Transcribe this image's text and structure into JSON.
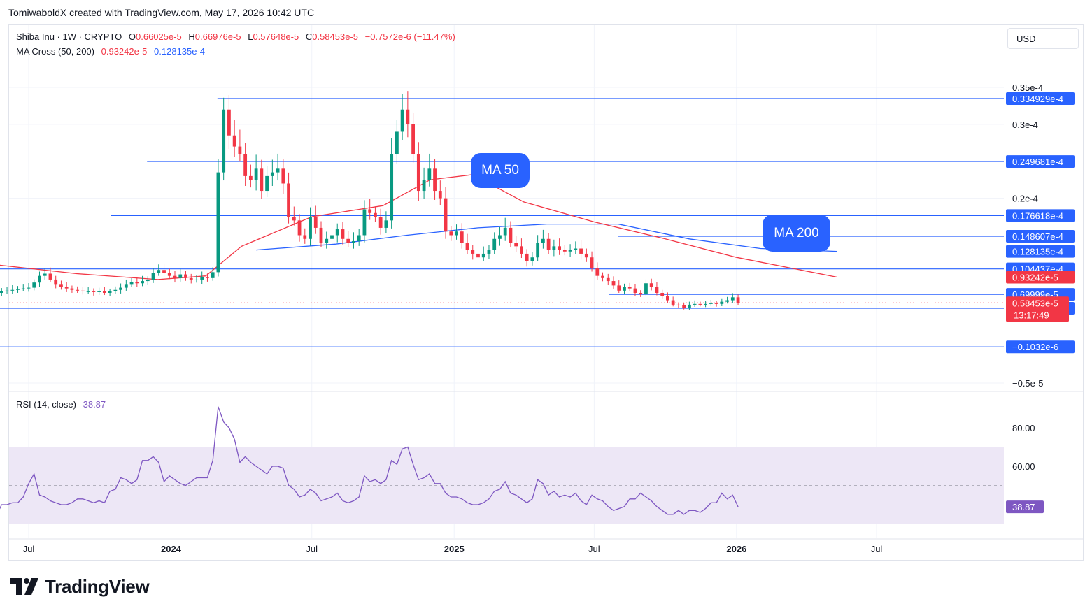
{
  "header": {
    "credit": "TomiwaboldX created with TradingView.com, May 17, 2026 10:42 UTC"
  },
  "legend": {
    "symbol": "Shiba Inu · 1W · CRYPTO",
    "o_label": "O",
    "o_value": "0.66025e-5",
    "h_label": "H",
    "h_value": "0.66976e-5",
    "l_label": "L",
    "l_value": "0.57648e-5",
    "c_label": "C",
    "c_value": "0.58453e-5",
    "change": "−0.7572e-6 (−11.47%)",
    "ma_label": "MA Cross (50, 200)",
    "ma50_value": "0.93242e-5",
    "ma200_value": "0.128135e-4",
    "rsi_label": "RSI (14, close)",
    "rsi_value": "38.87"
  },
  "currency_button": "USD",
  "bubbles": {
    "ma50": "MA 50",
    "ma200": "MA 200"
  },
  "brand": "TradingView",
  "colors": {
    "up": "#089981",
    "down": "#f23645",
    "ma50": "#f23645",
    "ma200": "#2962ff",
    "hline": "#2962ff",
    "rsi": "#7e57c2",
    "rsi_band": "#ede7f6",
    "grid": "#f0f3fa",
    "axis_text": "#131722"
  },
  "chart_data": [
    {
      "type": "candlestick",
      "title": "Shiba Inu · 1W · CRYPTO",
      "ylim": [
        -5e-06,
        3.7e-05
      ],
      "x_ticks": [
        {
          "label": "Jul",
          "date": "2023-07-01"
        },
        {
          "label": "2024",
          "date": "2024-01-01"
        },
        {
          "label": "Jul",
          "date": "2024-07-01"
        },
        {
          "label": "2025",
          "date": "2025-01-01"
        },
        {
          "label": "Jul",
          "date": "2025-07-01"
        },
        {
          "label": "2026",
          "date": "2026-01-01"
        },
        {
          "label": "Jul",
          "date": "2026-07-01"
        }
      ],
      "y_ticks": [
        {
          "label": "0.35e-4",
          "value": 3.5e-05
        },
        {
          "label": "0.3e-4",
          "value": 3e-05
        },
        {
          "label": "0.2e-4",
          "value": 2e-05
        },
        {
          "label": "−0.5e-5",
          "value": -5e-06
        }
      ],
      "price_levels": [
        {
          "label": "0.334929e-4",
          "value": 3.34929e-05,
          "from": "2024-03-01"
        },
        {
          "label": "0.249681e-4",
          "value": 2.49681e-05,
          "from": "2023-12-01"
        },
        {
          "label": "0.176618e-4",
          "value": 1.76618e-05,
          "from": "2023-10-15"
        },
        {
          "label": "0.148607e-4",
          "value": 1.48607e-05,
          "from": "2025-08-01",
          "boxed": false
        },
        {
          "label": "0.104437e-4",
          "value": 1.04437e-05,
          "from": "2023-05-20"
        },
        {
          "label": "0.69999e-5",
          "value": 6.9999e-06,
          "from": "2025-07-20"
        },
        {
          "label": "0.51167e-5",
          "value": 5.1167e-06,
          "from": "2023-05-20"
        },
        {
          "label": "−0.1032e-6",
          "value": -1.032e-07,
          "from": "2023-05-20"
        }
      ],
      "ma200_tag": {
        "label": "0.128135e-4",
        "value": 1.28135e-05
      },
      "ma50_tag": {
        "label": "0.93242e-5",
        "value": 9.3242e-06
      },
      "last_price_tag": {
        "label": "0.58453e-5",
        "value": 5.8453e-06,
        "countdown": "13:17:49"
      },
      "start_date": "2023-05-20",
      "end_date": "2026-05-11",
      "closes": [
        7.2e-06,
        7.4e-06,
        7.5e-06,
        7.6e-06,
        7.7e-06,
        7.8e-06,
        7.9e-06,
        8.6e-06,
        9.5e-06,
        9.8e-06,
        9e-06,
        8.3e-06,
        8e-06,
        7.8e-06,
        7.6e-06,
        7.5e-06,
        7.4e-06,
        7.4e-06,
        7.3e-06,
        7.4e-06,
        7.2e-06,
        7.4e-06,
        7.6e-06,
        7.9e-06,
        8.3e-06,
        8.7e-06,
        8.5e-06,
        8.8e-06,
        9e-06,
        9.9e-06,
        1.03e-05,
        9.9e-06,
        9.5e-06,
        9.2e-06,
        9.7e-06,
        9.2e-06,
        9e-06,
        9e-06,
        9.3e-06,
        9.2e-06,
        1e-05,
        2.35e-05,
        3.2e-05,
        2.85e-05,
        2.7e-05,
        2.6e-05,
        2.3e-05,
        2.25e-05,
        2.4e-05,
        2.1e-05,
        2.3e-05,
        2.35e-05,
        2.4e-05,
        2.2e-05,
        1.75e-05,
        1.7e-05,
        1.5e-05,
        1.45e-05,
        1.75e-05,
        1.6e-05,
        1.4e-05,
        1.45e-05,
        1.5e-05,
        1.58e-05,
        1.45e-05,
        1.4e-05,
        1.42e-05,
        1.5e-05,
        1.85e-05,
        1.8e-05,
        1.75e-05,
        1.6e-05,
        1.7e-05,
        2.6e-05,
        2.9e-05,
        3.2e-05,
        3e-05,
        2.6e-05,
        2.1e-05,
        2.25e-05,
        2.4e-05,
        2.1e-05,
        2e-05,
        1.55e-05,
        1.5e-05,
        1.55e-05,
        1.4e-05,
        1.3e-05,
        1.25e-05,
        1.2e-05,
        1.25e-05,
        1.3e-05,
        1.45e-05,
        1.5e-05,
        1.6e-05,
        1.4e-05,
        1.35e-05,
        1.25e-05,
        1.15e-05,
        1.2e-05,
        1.4e-05,
        1.45e-05,
        1.3e-05,
        1.35e-05,
        1.3e-05,
        1.28e-05,
        1.3e-05,
        1.32e-05,
        1.25e-05,
        1.2e-05,
        1.05e-05,
        9.5e-06,
        9.2e-06,
        8.8e-06,
        8.2e-06,
        7.5e-06,
        8e-06,
        7.8e-06,
        7.2e-06,
        7e-06,
        8.5e-06,
        8e-06,
        7.2e-06,
        6.8e-06,
        6.2e-06,
        5.6e-06,
        5.5e-06,
        5.2e-06,
        5.6e-06,
        5.7e-06,
        5.6e-06,
        5.7e-06,
        5.8e-06,
        5.7e-06,
        6e-06,
        6.2e-06,
        6.6e-06,
        5.8453e-06
      ],
      "ma50_points": [
        {
          "date": "2023-05-20",
          "value": 1.1e-05
        },
        {
          "date": "2023-09-01",
          "value": 9.8e-06
        },
        {
          "date": "2023-12-15",
          "value": 9e-06
        },
        {
          "date": "2024-02-15",
          "value": 9.5e-06
        },
        {
          "date": "2024-04-01",
          "value": 1.35e-05
        },
        {
          "date": "2024-07-01",
          "value": 1.75e-05
        },
        {
          "date": "2024-10-01",
          "value": 1.9e-05
        },
        {
          "date": "2024-12-01",
          "value": 2.25e-05
        },
        {
          "date": "2025-01-25",
          "value": 2.32e-05
        },
        {
          "date": "2025-04-01",
          "value": 1.95e-05
        },
        {
          "date": "2025-07-01",
          "value": 1.68e-05
        },
        {
          "date": "2025-10-01",
          "value": 1.45e-05
        },
        {
          "date": "2026-01-01",
          "value": 1.2e-05
        },
        {
          "date": "2026-05-11",
          "value": 9.3242e-06
        }
      ],
      "ma200_points": [
        {
          "date": "2024-04-20",
          "value": 1.3e-05
        },
        {
          "date": "2024-08-01",
          "value": 1.38e-05
        },
        {
          "date": "2024-11-01",
          "value": 1.5e-05
        },
        {
          "date": "2025-02-01",
          "value": 1.6e-05
        },
        {
          "date": "2025-05-01",
          "value": 1.65e-05
        },
        {
          "date": "2025-08-01",
          "value": 1.65e-05
        },
        {
          "date": "2025-11-01",
          "value": 1.45e-05
        },
        {
          "date": "2026-02-01",
          "value": 1.32e-05
        },
        {
          "date": "2026-05-11",
          "value": 1.28135e-05
        }
      ]
    },
    {
      "type": "line",
      "title": "RSI (14, close)",
      "ylim": [
        30,
        95
      ],
      "y_ticks": [
        {
          "label": "80.00",
          "value": 80
        },
        {
          "label": "60.00",
          "value": 60
        }
      ],
      "bands": {
        "upper": 70,
        "middle": 50,
        "lower": 30
      },
      "last_tag": {
        "label": "38.87",
        "value": 38.87
      },
      "values": [
        34,
        40,
        40,
        41,
        41,
        44,
        51,
        56,
        45,
        44,
        42,
        41,
        40,
        40,
        41,
        43,
        43,
        42,
        41,
        42,
        41,
        47,
        48,
        54,
        53,
        51,
        53,
        63,
        63,
        65,
        62,
        52,
        55,
        53,
        51,
        50,
        52,
        54,
        54,
        54,
        63,
        91,
        83,
        80,
        74,
        62,
        65,
        62,
        60,
        58,
        56,
        60,
        60,
        59,
        50,
        48,
        44,
        45,
        48,
        46,
        42,
        43,
        44,
        46,
        42,
        41,
        42,
        44,
        55,
        52,
        53,
        51,
        53,
        63,
        61,
        69,
        70,
        61,
        53,
        54,
        56,
        51,
        51,
        46,
        44,
        44,
        43,
        41,
        40,
        40,
        41,
        43,
        47,
        48,
        52,
        46,
        45,
        43,
        41,
        43,
        53,
        51,
        45,
        47,
        44,
        45,
        44,
        46,
        42,
        40,
        45,
        43,
        42,
        39,
        37,
        38,
        39,
        43,
        43,
        46,
        44,
        42,
        39,
        37,
        35,
        35,
        37,
        35,
        37,
        37,
        36,
        38,
        41,
        41,
        46,
        43,
        45,
        38.87
      ]
    }
  ]
}
